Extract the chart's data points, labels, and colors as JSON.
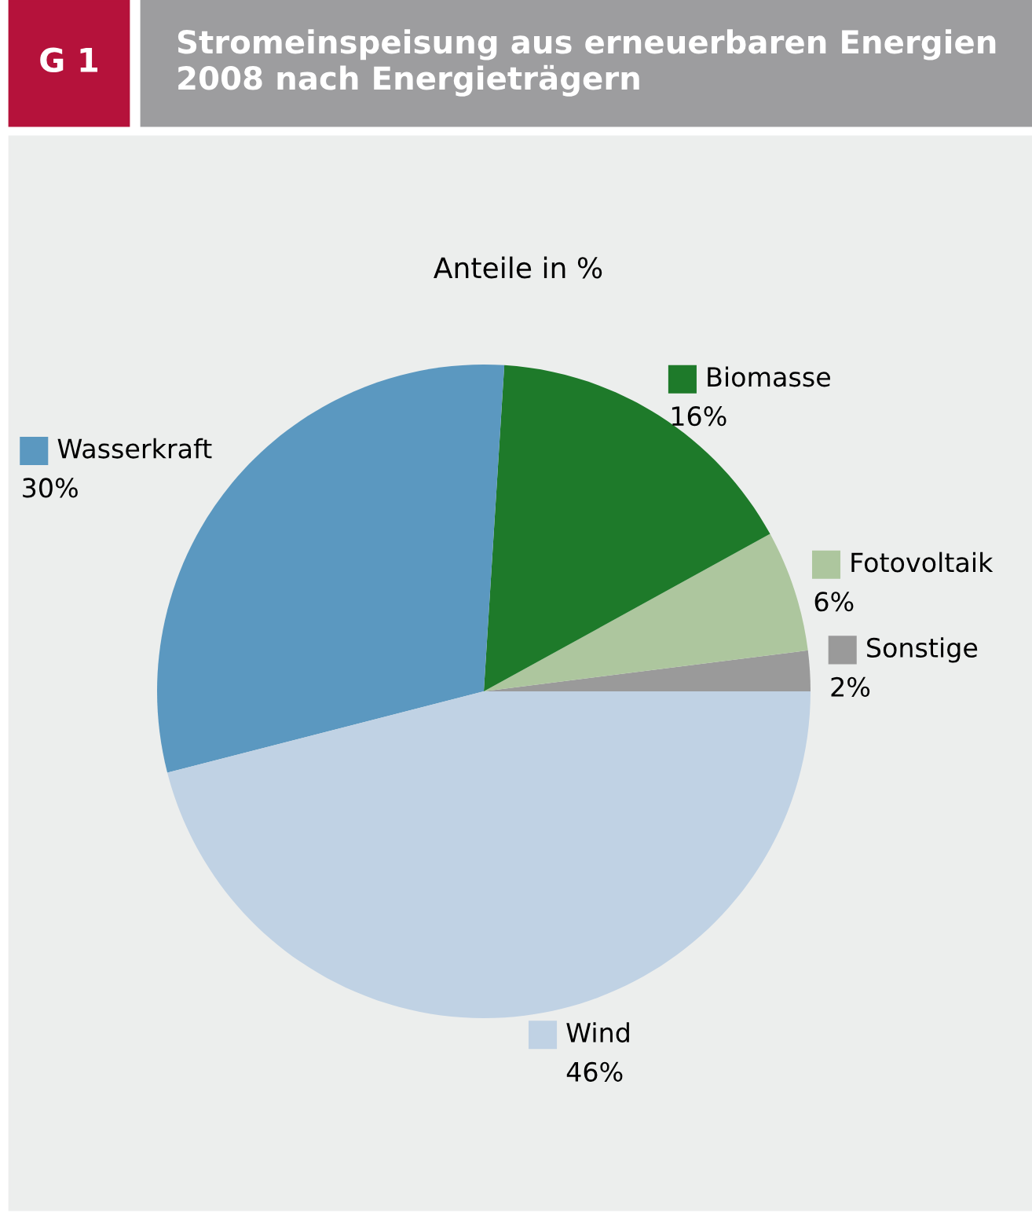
{
  "chart_data": {
    "type": "pie",
    "title": "Stromeinspeisung aus erneuerbaren Energien 2008 nach Energieträgern",
    "subtitle": "Anteile in %",
    "annotations": [
      "G 1"
    ],
    "categories": [
      "Sonstige",
      "Fotovoltaik",
      "Biomasse",
      "Wasserkraft",
      "Wind"
    ],
    "values": [
      2,
      6,
      16,
      30,
      46
    ],
    "value_labels": [
      "2%",
      "6%",
      "16%",
      "30%",
      "46%"
    ],
    "legend": "right",
    "colors": [
      "#9a9a9a",
      "#adc69e",
      "#1e7a2a",
      "#5b98c0",
      "#c0d2e4"
    ]
  }
}
